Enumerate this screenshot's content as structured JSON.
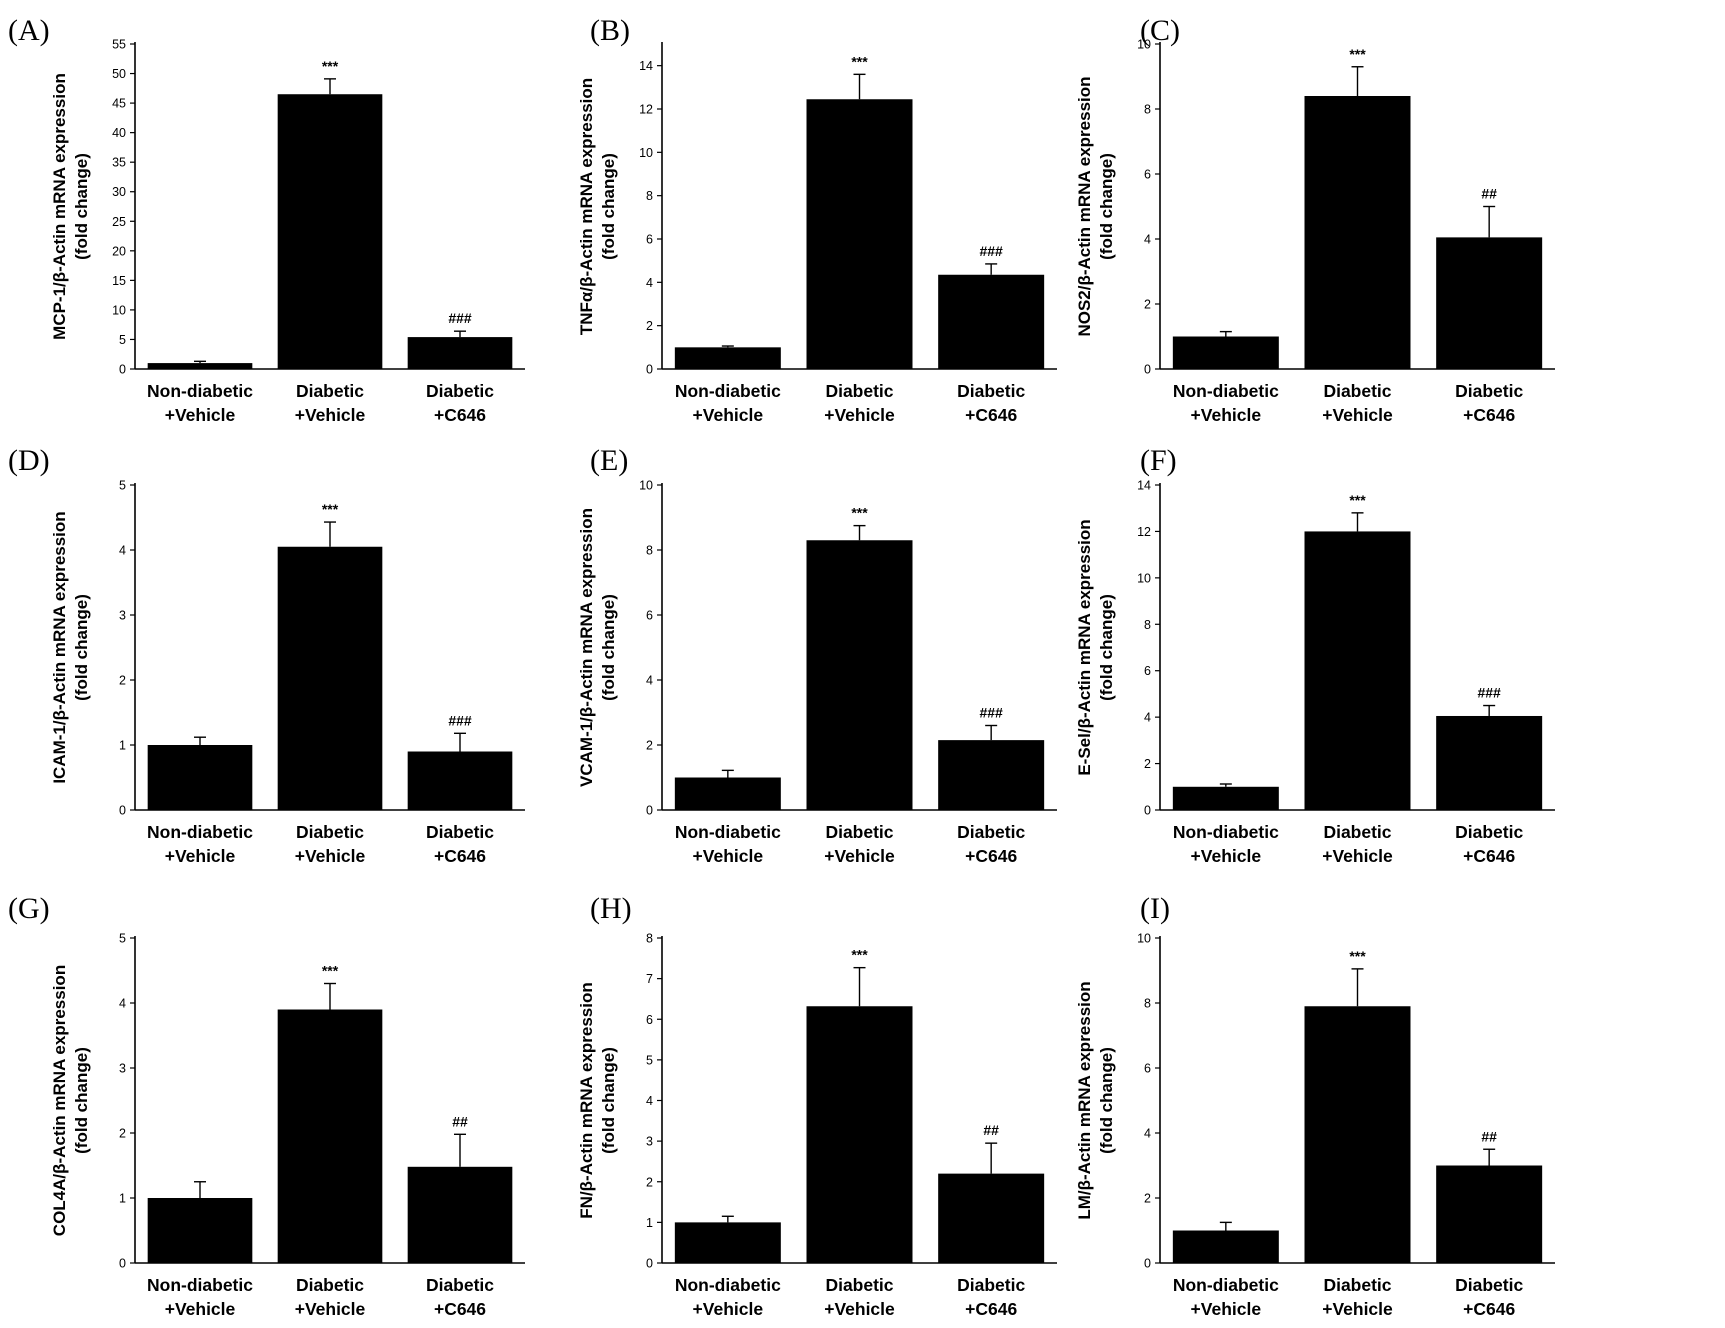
{
  "figure": {
    "background": "#ffffff",
    "bar_color": "#000000",
    "axis_color": "#000000"
  },
  "chart_data": [
    {
      "panel": "(A)",
      "type": "bar",
      "ylabel_line1": "MCP-1/β-Actin mRNA expression",
      "ylabel_line2": "(fold change)",
      "ylim": [
        0,
        55
      ],
      "yticks": [
        0,
        5,
        10,
        15,
        20,
        25,
        30,
        35,
        40,
        45,
        50,
        55
      ],
      "categories": [
        [
          "Non-diabetic",
          "+Vehicle"
        ],
        [
          "Diabetic",
          "+Vehicle"
        ],
        [
          "Diabetic",
          "+C646"
        ]
      ],
      "values": [
        1.0,
        46.5,
        5.4
      ],
      "errors": [
        0.3,
        2.6,
        1.0
      ],
      "significance": [
        "",
        "***",
        "###"
      ]
    },
    {
      "panel": "(B)",
      "type": "bar",
      "ylabel_line1": "TNFα/β-Actin mRNA expression",
      "ylabel_line2": "(fold change)",
      "ylim": [
        0,
        15
      ],
      "yticks": [
        0,
        2,
        4,
        6,
        8,
        10,
        12,
        14
      ],
      "categories": [
        [
          "Non-diabetic",
          "+Vehicle"
        ],
        [
          "Diabetic",
          "+Vehicle"
        ],
        [
          "Diabetic",
          "+C646"
        ]
      ],
      "values": [
        1.0,
        12.45,
        4.35
      ],
      "errors": [
        0.06,
        1.15,
        0.5
      ],
      "significance": [
        "",
        "***",
        "###"
      ]
    },
    {
      "panel": "(C)",
      "type": "bar",
      "ylabel_line1": "NOS2/β-Actin mRNA expression",
      "ylabel_line2": "(fold change)",
      "ylim": [
        0,
        10
      ],
      "yticks": [
        0,
        2,
        4,
        6,
        8,
        10
      ],
      "categories": [
        [
          "Non-diabetic",
          "+Vehicle"
        ],
        [
          "Diabetic",
          "+Vehicle"
        ],
        [
          "Diabetic",
          "+C646"
        ]
      ],
      "values": [
        1.0,
        8.4,
        4.05
      ],
      "errors": [
        0.15,
        0.9,
        0.95
      ],
      "significance": [
        "",
        "***",
        "##"
      ]
    },
    {
      "panel": "(D)",
      "type": "bar",
      "ylabel_line1": "ICAM-1/β-Actin mRNA expression",
      "ylabel_line2": "(fold change)",
      "ylim": [
        0,
        5
      ],
      "yticks": [
        0,
        1,
        2,
        3,
        4,
        5
      ],
      "categories": [
        [
          "Non-diabetic",
          "+Vehicle"
        ],
        [
          "Diabetic",
          "+Vehicle"
        ],
        [
          "Diabetic",
          "+C646"
        ]
      ],
      "values": [
        1.0,
        4.05,
        0.9
      ],
      "errors": [
        0.12,
        0.38,
        0.28
      ],
      "significance": [
        "",
        "***",
        "###"
      ]
    },
    {
      "panel": "(E)",
      "type": "bar",
      "ylabel_line1": "VCAM-1/β-Actin mRNA expression",
      "ylabel_line2": "(fold change)",
      "ylim": [
        0,
        10
      ],
      "yticks": [
        0,
        2,
        4,
        6,
        8,
        10
      ],
      "categories": [
        [
          "Non-diabetic",
          "+Vehicle"
        ],
        [
          "Diabetic",
          "+Vehicle"
        ],
        [
          "Diabetic",
          "+C646"
        ]
      ],
      "values": [
        1.0,
        8.3,
        2.15
      ],
      "errors": [
        0.22,
        0.45,
        0.45
      ],
      "significance": [
        "",
        "***",
        "###"
      ]
    },
    {
      "panel": "(F)",
      "type": "bar",
      "ylabel_line1": "E-Sel/β-Actin mRNA expression",
      "ylabel_line2": "(fold change)",
      "ylim": [
        0,
        14
      ],
      "yticks": [
        0,
        2,
        4,
        6,
        8,
        10,
        12,
        14
      ],
      "categories": [
        [
          "Non-diabetic",
          "+Vehicle"
        ],
        [
          "Diabetic",
          "+Vehicle"
        ],
        [
          "Diabetic",
          "+C646"
        ]
      ],
      "values": [
        1.0,
        12.0,
        4.05
      ],
      "errors": [
        0.12,
        0.8,
        0.45
      ],
      "significance": [
        "",
        "***",
        "###"
      ]
    },
    {
      "panel": "(G)",
      "type": "bar",
      "ylabel_line1": "COL4A/β-Actin mRNA expression",
      "ylabel_line2": "(fold change)",
      "ylim": [
        0,
        5
      ],
      "yticks": [
        0,
        1,
        2,
        3,
        4,
        5
      ],
      "categories": [
        [
          "Non-diabetic",
          "+Vehicle"
        ],
        [
          "Diabetic",
          "+Vehicle"
        ],
        [
          "Diabetic",
          "+C646"
        ]
      ],
      "values": [
        1.0,
        3.9,
        1.48
      ],
      "errors": [
        0.25,
        0.4,
        0.5
      ],
      "significance": [
        "",
        "***",
        "##"
      ]
    },
    {
      "panel": "(H)",
      "type": "bar",
      "ylabel_line1": "FN/β-Actin mRNA expression",
      "ylabel_line2": "(fold change)",
      "ylim": [
        0,
        8
      ],
      "yticks": [
        0,
        1,
        2,
        3,
        4,
        5,
        6,
        7,
        8
      ],
      "categories": [
        [
          "Non-diabetic",
          "+Vehicle"
        ],
        [
          "Diabetic",
          "+Vehicle"
        ],
        [
          "Diabetic",
          "+C646"
        ]
      ],
      "values": [
        1.0,
        6.32,
        2.2
      ],
      "errors": [
        0.15,
        0.95,
        0.75
      ],
      "significance": [
        "",
        "***",
        "##"
      ]
    },
    {
      "panel": "(I)",
      "type": "bar",
      "ylabel_line1": "LM/β-Actin mRNA expression",
      "ylabel_line2": "(fold change)",
      "ylim": [
        0,
        10
      ],
      "yticks": [
        0,
        2,
        4,
        6,
        8,
        10
      ],
      "categories": [
        [
          "Non-diabetic",
          "+Vehicle"
        ],
        [
          "Diabetic",
          "+Vehicle"
        ],
        [
          "Diabetic",
          "+C646"
        ]
      ],
      "values": [
        1.0,
        7.9,
        3.0
      ],
      "errors": [
        0.25,
        1.15,
        0.5
      ],
      "significance": [
        "",
        "***",
        "##"
      ]
    }
  ]
}
